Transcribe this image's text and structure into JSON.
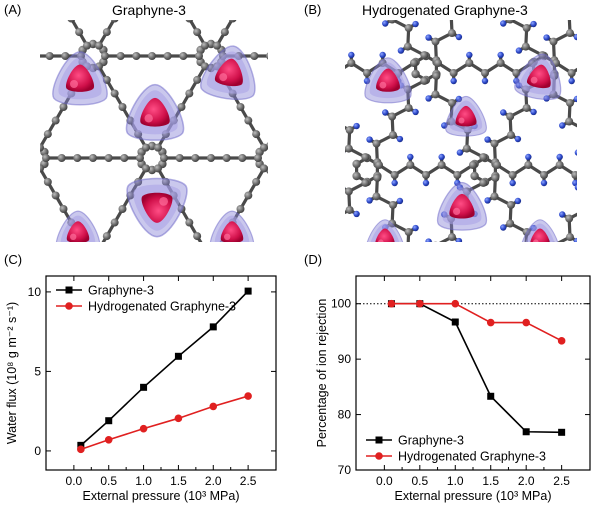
{
  "panels": {
    "a": {
      "tag": "(A)",
      "title": "Graphyne-3"
    },
    "b": {
      "tag": "(B)",
      "title": "Hydrogenated Graphyne-3"
    },
    "c": {
      "tag": "(C)"
    },
    "d": {
      "tag": "(D)"
    }
  },
  "icons": {
    "carbon_atom": "gray-sphere",
    "hydrogen_atom": "blue-sphere",
    "ion_cluster": "red-blob-with-blue-halo"
  },
  "colors": {
    "carbon": "#5a5a5a",
    "hydrogen": "#2b47c9",
    "ion": "#e0185a",
    "ion_halo": "#8a86d8",
    "series_black": "#000000",
    "series_red": "#e02020"
  },
  "chart_data": [
    {
      "id": "C",
      "type": "line",
      "title": "",
      "xlabel": "External pressure (10³ MPa)",
      "ylabel": "Water flux (10⁸ g m⁻² s⁻¹)",
      "xlim": [
        -0.4,
        2.9
      ],
      "ylim": [
        -1.2,
        11.0
      ],
      "xticks": [
        0.0,
        0.5,
        1.0,
        1.5,
        2.0,
        2.5
      ],
      "xticklabels": [
        "0.0",
        "0.5",
        "1.0",
        "1.5",
        "2.0",
        "2.5"
      ],
      "yticks": [
        0,
        5,
        10
      ],
      "yticklabels": [
        "0",
        "5",
        "10"
      ],
      "grid": false,
      "legend": "top-left",
      "series": [
        {
          "name": "Graphyne-3",
          "color": "#000000",
          "marker": "square",
          "x": [
            0.1,
            0.5,
            1.0,
            1.5,
            2.0,
            2.5
          ],
          "y": [
            0.35,
            1.9,
            4.0,
            5.95,
            7.8,
            10.05
          ]
        },
        {
          "name": "Hydrogenated Graphyne-3",
          "color": "#e02020",
          "marker": "circle",
          "x": [
            0.1,
            0.5,
            1.0,
            1.5,
            2.0,
            2.5
          ],
          "y": [
            0.1,
            0.7,
            1.4,
            2.05,
            2.8,
            3.45
          ]
        }
      ]
    },
    {
      "id": "D",
      "type": "line",
      "title": "",
      "xlabel": "External pressure (10³ MPa)",
      "ylabel": "Percentage of ion rejection",
      "xlim": [
        -0.4,
        2.9
      ],
      "ylim": [
        70,
        105
      ],
      "xticks": [
        0.0,
        0.5,
        1.0,
        1.5,
        2.0,
        2.5
      ],
      "xticklabels": [
        "0.0",
        "0.5",
        "1.0",
        "1.5",
        "2.0",
        "2.5"
      ],
      "yticks": [
        70,
        80,
        90,
        100
      ],
      "yticklabels": [
        "70",
        "80",
        "90",
        "100"
      ],
      "grid": false,
      "legend": "bottom-left",
      "reference_line": {
        "y": 100,
        "style": "dotted"
      },
      "series": [
        {
          "name": "Graphyne-3",
          "color": "#000000",
          "marker": "square",
          "x": [
            0.1,
            0.5,
            1.0,
            1.5,
            2.0,
            2.5
          ],
          "y": [
            100,
            100,
            96.7,
            83.3,
            76.9,
            76.8
          ]
        },
        {
          "name": "Hydrogenated Graphyne-3",
          "color": "#e02020",
          "marker": "circle",
          "x": [
            0.1,
            0.5,
            1.0,
            1.5,
            2.0,
            2.5
          ],
          "y": [
            100,
            100,
            100,
            96.6,
            96.6,
            93.3
          ]
        }
      ]
    }
  ]
}
